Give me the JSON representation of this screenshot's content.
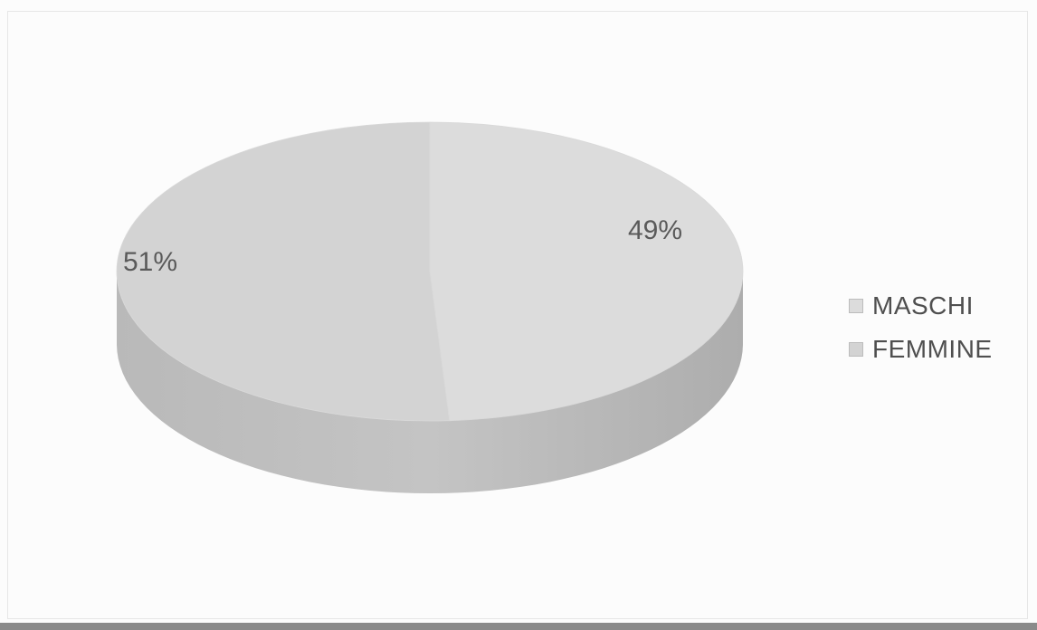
{
  "chart_data": {
    "type": "pie",
    "three_d": true,
    "slices": [
      {
        "name": "MASCHI",
        "value": 49,
        "label": "49%",
        "color": "#dcdcdc"
      },
      {
        "name": "FEMMINE",
        "value": 51,
        "label": "51%",
        "color": "#d3d3d3"
      }
    ],
    "legend_position": "right",
    "legend": [
      "MASCHI",
      "FEMMINE"
    ]
  }
}
